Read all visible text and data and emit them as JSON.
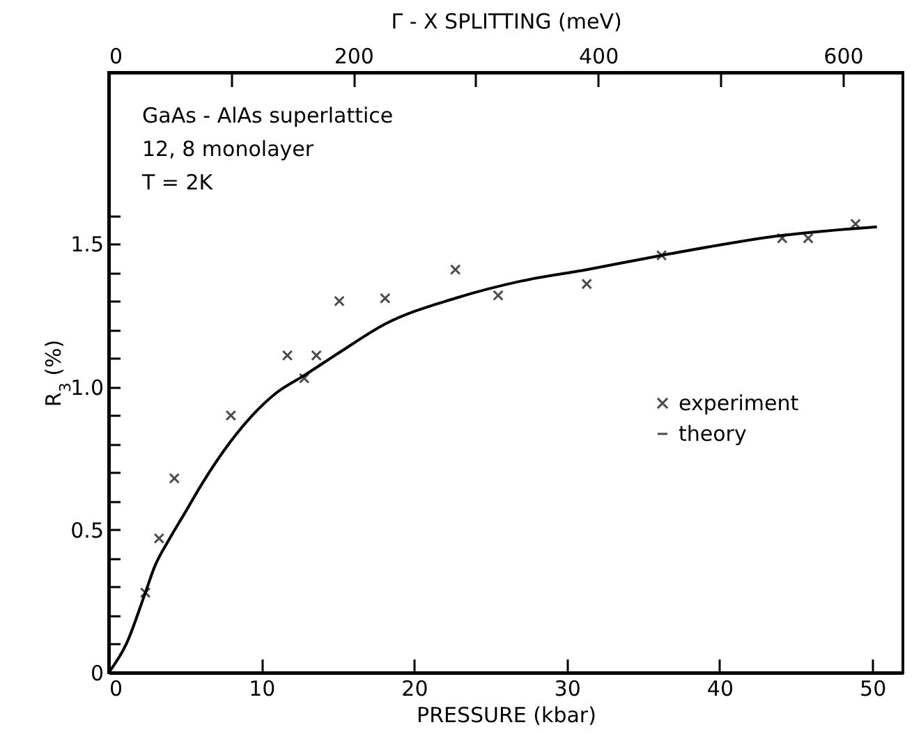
{
  "chart_data": {
    "type": "scatter",
    "xlabel": "PRESSURE  (kbar)",
    "ylabel": "R$_{3}$ (%)",
    "x2label": "Γ - X  SPLITTING  (meV)",
    "annotations": [
      "GaAs - AlAs  superlattice",
      "12, 8  monolayer",
      "T = 2K"
    ],
    "xlim": [
      0,
      52
    ],
    "ylim": [
      0,
      2.1
    ],
    "x2lim": [
      0,
      649
    ],
    "xticks": [
      0,
      10,
      20,
      30,
      40,
      50
    ],
    "x2ticks": [
      0,
      {
        "value": 100,
        "label": null
      },
      200,
      {
        "value": 300,
        "label": null
      },
      400,
      {
        "value": 500,
        "label": null
      },
      600
    ],
    "yticks": [
      0,
      {
        "value": 0.1,
        "label": null
      },
      {
        "value": 0.2,
        "label": null
      },
      {
        "value": 0.3,
        "label": null
      },
      {
        "value": 0.4,
        "label": null
      },
      0.5,
      {
        "value": 0.6,
        "label": null
      },
      {
        "value": 0.7,
        "label": null
      },
      {
        "value": 0.8,
        "label": null
      },
      {
        "value": 0.9,
        "label": null
      },
      {
        "value": 1,
        "label": "1.0"
      },
      {
        "value": 1.1,
        "label": null
      },
      {
        "value": 1.2,
        "label": null
      },
      {
        "value": 1.3,
        "label": null
      },
      {
        "value": 1.4,
        "label": null
      },
      1.5,
      {
        "value": 1.6,
        "label": null
      }
    ],
    "legend": "right",
    "grid": false,
    "series": [
      {
        "name": "experiment",
        "marker": "cross",
        "color": "#000000",
        "x": [
          2.4,
          3.3,
          4.3,
          8.0,
          11.7,
          12.8,
          13.6,
          15.1,
          18.1,
          22.7,
          25.5,
          31.3,
          36.2,
          44.1,
          45.8,
          48.9
        ],
        "values": [
          0.28,
          0.47,
          0.68,
          0.9,
          1.11,
          1.03,
          1.11,
          1.3,
          1.31,
          1.41,
          1.32,
          1.36,
          1.46,
          1.52,
          1.52,
          1.57
        ]
      },
      {
        "name": "theory",
        "type": "line",
        "line_style": "solid",
        "color": "#000000",
        "x": [
          0,
          1.15,
          2.4,
          3.0,
          4.0,
          5.0,
          6.1,
          8.0,
          9.4,
          11.0,
          12.8,
          15.1,
          18.1,
          22.7,
          27,
          31.3,
          36.2,
          44.1,
          50.3
        ],
        "values": [
          0,
          0.1,
          0.28,
          0.37,
          0.47,
          0.56,
          0.66,
          0.81,
          0.9,
          0.98,
          1.04,
          1.12,
          1.22,
          1.31,
          1.37,
          1.41,
          1.46,
          1.53,
          1.56
        ]
      }
    ]
  }
}
